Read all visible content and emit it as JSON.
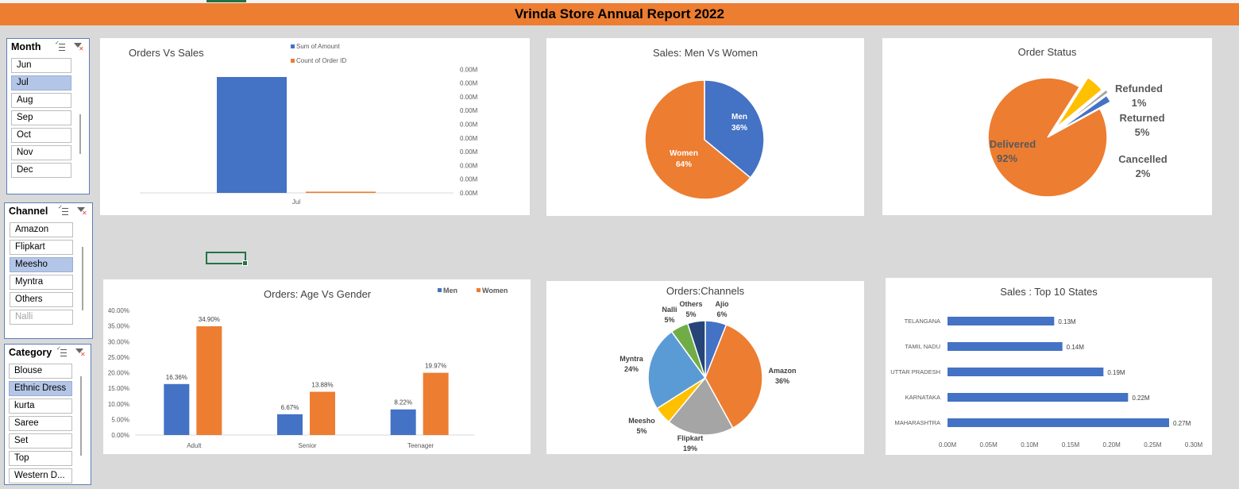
{
  "report": {
    "title": "Vrinda Store Annual Report 2022"
  },
  "colors": {
    "blue": "#4472c4",
    "orange": "#ed7d31",
    "gray": "#a5a5a5",
    "yellow": "#ffc000",
    "lightblue": "#5b9bd5",
    "green": "#70ad47",
    "navy": "#264478",
    "slicer_selected": "#b4c6e7"
  },
  "slicers": {
    "month": {
      "header": "Month",
      "items": [
        {
          "label": "Jun",
          "selected": false
        },
        {
          "label": "Jul",
          "selected": true
        },
        {
          "label": "Aug",
          "selected": false
        },
        {
          "label": "Sep",
          "selected": false
        },
        {
          "label": "Oct",
          "selected": false
        },
        {
          "label": "Nov",
          "selected": false
        },
        {
          "label": "Dec",
          "selected": false
        }
      ]
    },
    "channel": {
      "header": "Channel",
      "items": [
        {
          "label": "Amazon",
          "selected": false
        },
        {
          "label": "Flipkart",
          "selected": false
        },
        {
          "label": "Meesho",
          "selected": true
        },
        {
          "label": "Myntra",
          "selected": false
        },
        {
          "label": "Others",
          "selected": false
        },
        {
          "label": "Nalli",
          "selected": false,
          "dimmed": true
        }
      ]
    },
    "category": {
      "header": "Category",
      "items": [
        {
          "label": "Blouse",
          "selected": false
        },
        {
          "label": "Ethnic Dress",
          "selected": true
        },
        {
          "label": "kurta",
          "selected": false
        },
        {
          "label": "Saree",
          "selected": false
        },
        {
          "label": "Set",
          "selected": false
        },
        {
          "label": "Top",
          "selected": false
        },
        {
          "label": "Western D...",
          "selected": false
        }
      ]
    }
  },
  "chart_data": [
    {
      "id": "orders_vs_sales",
      "type": "bar",
      "title": "Orders Vs Sales",
      "categories": [
        "Jul"
      ],
      "series": [
        {
          "name": "Sum of Amount",
          "values": [
            1.0
          ],
          "axis": "primary"
        },
        {
          "name": "Count of Order ID",
          "values": [
            0.01
          ],
          "axis": "secondary"
        }
      ],
      "secondary_ticks": [
        "0.00M",
        "0.00M",
        "0.00M",
        "0.00M",
        "0.00M",
        "0.00M",
        "0.00M",
        "0.00M",
        "0.00M",
        "0.00M"
      ],
      "legend": "top"
    },
    {
      "id": "sales_men_women",
      "type": "pie",
      "title": "Sales: Men Vs Women",
      "slices": [
        {
          "label": "Men",
          "pct_label": "36%",
          "value": 36,
          "color": "#4472c4"
        },
        {
          "label": "Women",
          "pct_label": "64%",
          "value": 64,
          "color": "#ed7d31"
        }
      ]
    },
    {
      "id": "order_status",
      "type": "pie",
      "title": "Order Status",
      "slices": [
        {
          "label": "Delivered",
          "pct_label": "92%",
          "value": 92,
          "color": "#ed7d31"
        },
        {
          "label": "Returned",
          "pct_label": "5%",
          "value": 5,
          "color": "#ffc000"
        },
        {
          "label": "Refunded",
          "pct_label": "1%",
          "value": 1,
          "color": "#a5a5a5"
        },
        {
          "label": "Cancelled",
          "pct_label": "2%",
          "value": 2,
          "color": "#4472c4"
        }
      ]
    },
    {
      "id": "orders_age_gender",
      "type": "bar",
      "title": "Orders: Age Vs Gender",
      "categories": [
        "Adult",
        "Senior",
        "Teenager"
      ],
      "series": [
        {
          "name": "Men",
          "values": [
            16.36,
            6.67,
            8.22
          ],
          "labels": [
            "16.36%",
            "6.67%",
            "8.22%"
          ],
          "color": "#4472c4"
        },
        {
          "name": "Women",
          "values": [
            34.9,
            13.88,
            19.97
          ],
          "labels": [
            "34.90%",
            "13.88%",
            "19.97%"
          ],
          "color": "#ed7d31"
        }
      ],
      "ylim": [
        0,
        40
      ],
      "yticks": [
        "0.00%",
        "5.00%",
        "10.00%",
        "15.00%",
        "20.00%",
        "25.00%",
        "30.00%",
        "35.00%",
        "40.00%"
      ],
      "legend": "top-right"
    },
    {
      "id": "orders_channels",
      "type": "pie",
      "title": "Orders:Channels",
      "slices": [
        {
          "label": "Ajio",
          "pct_label": "6%",
          "value": 6,
          "color": "#4472c4"
        },
        {
          "label": "Amazon",
          "pct_label": "36%",
          "value": 36,
          "color": "#ed7d31"
        },
        {
          "label": "Flipkart",
          "pct_label": "19%",
          "value": 19,
          "color": "#a5a5a5"
        },
        {
          "label": "Meesho",
          "pct_label": "5%",
          "value": 5,
          "color": "#ffc000"
        },
        {
          "label": "Myntra",
          "pct_label": "24%",
          "value": 24,
          "color": "#5b9bd5"
        },
        {
          "label": "Nalli",
          "pct_label": "5%",
          "value": 5,
          "color": "#70ad47"
        },
        {
          "label": "Others",
          "pct_label": "5%",
          "value": 5,
          "color": "#264478"
        }
      ]
    },
    {
      "id": "top_states",
      "type": "bar",
      "orientation": "horizontal",
      "title": "Sales : Top 10 States",
      "categories": [
        "TELANGANA",
        "TAMIL NADU",
        "UTTAR PRADESH",
        "KARNATAKA",
        "MAHARASHTRA"
      ],
      "values": [
        0.13,
        0.14,
        0.19,
        0.22,
        0.27
      ],
      "labels": [
        "0.13M",
        "0.14M",
        "0.19M",
        "0.22M",
        "0.27M"
      ],
      "xlim": [
        0,
        0.3
      ],
      "xticks": [
        "0.00M",
        "0.05M",
        "0.10M",
        "0.15M",
        "0.20M",
        "0.25M",
        "0.30M"
      ]
    }
  ]
}
